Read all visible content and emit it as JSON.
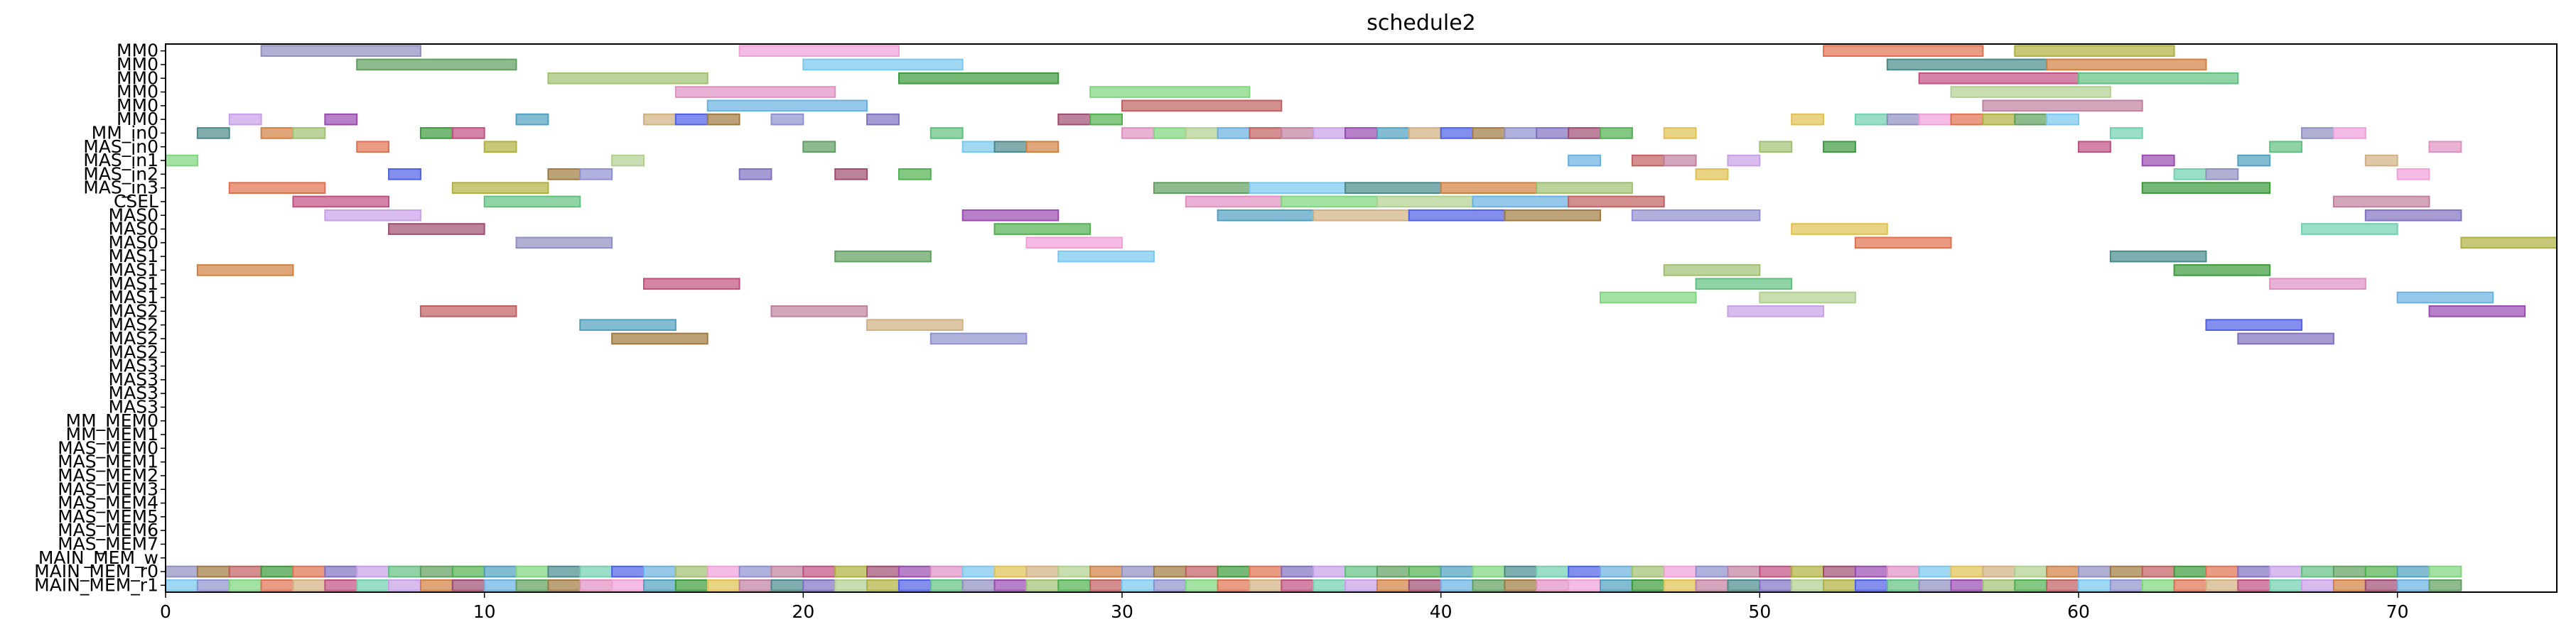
{
  "chart_data": {
    "type": "gantt",
    "title": "schedule2",
    "xlim": [
      0,
      75
    ],
    "xticks": [
      0,
      10,
      20,
      30,
      40,
      50,
      60,
      70
    ],
    "rows": [
      "MM0",
      "MM0",
      "MM0",
      "MM0",
      "MM0",
      "MM0",
      "MM_in0",
      "MAS_in0",
      "MAS_in1",
      "MAS_in2",
      "MAS_in3",
      "CSEL",
      "MAS0",
      "MAS0",
      "MAS0",
      "MAS1",
      "MAS1",
      "MAS1",
      "MAS1",
      "MAS2",
      "MAS2",
      "MAS2",
      "MAS2",
      "MAS3",
      "MAS3",
      "MAS3",
      "MAS3",
      "MM_MEM0",
      "MM_MEM1",
      "MAS_MEM0",
      "MAS_MEM1",
      "MAS_MEM2",
      "MAS_MEM3",
      "MAS_MEM4",
      "MAS_MEM5",
      "MAS_MEM6",
      "MAS_MEM7",
      "MAIN_MEM_w",
      "MAIN_MEM_r0",
      "MAIN_MEM_r1"
    ],
    "palette": [
      "#8f8fc0",
      "#7ed67e",
      "#a04c70",
      "#3c9a3c",
      "#5060e6",
      "#78c8ef",
      "#c8a0e8",
      "#f0a0d8",
      "#b0d090",
      "#50b050",
      "#c05080",
      "#a07a40",
      "#4a8a8a",
      "#9a4ab0",
      "#e07050",
      "#6ab0e0",
      "#e0c050",
      "#60c080",
      "#9090d0",
      "#d08040",
      "#50a0c0",
      "#b0b040",
      "#c06060",
      "#70d0b0",
      "#e090c0",
      "#8070c0",
      "#a0c070",
      "#d0b080",
      "#60a060",
      "#c080a0"
    ],
    "bars": [
      [
        0,
        3,
        8
      ],
      [
        0,
        18,
        23
      ],
      [
        0,
        52,
        57
      ],
      [
        0,
        58,
        63
      ],
      [
        1,
        6,
        11
      ],
      [
        1,
        20,
        25
      ],
      [
        1,
        54,
        59
      ],
      [
        1,
        59,
        64
      ],
      [
        2,
        12,
        17
      ],
      [
        2,
        23,
        28
      ],
      [
        2,
        55,
        60
      ],
      [
        2,
        60,
        65
      ],
      [
        3,
        16,
        21
      ],
      [
        3,
        29,
        34
      ],
      [
        3,
        56,
        61
      ],
      [
        4,
        17,
        22
      ],
      [
        4,
        30,
        35
      ],
      [
        4,
        57,
        62
      ],
      [
        5,
        2,
        3
      ],
      [
        5,
        5,
        6
      ],
      [
        5,
        11,
        12
      ],
      [
        5,
        15,
        16
      ],
      [
        5,
        16,
        17
      ],
      [
        5,
        17,
        18
      ],
      [
        5,
        19,
        20
      ],
      [
        5,
        22,
        23
      ],
      [
        5,
        28,
        29
      ],
      [
        5,
        29,
        30
      ],
      [
        5,
        51,
        52
      ],
      [
        5,
        53,
        54
      ],
      [
        5,
        54,
        55
      ],
      [
        5,
        55,
        56
      ],
      [
        5,
        56,
        57
      ],
      [
        5,
        57,
        58
      ],
      [
        5,
        58,
        59
      ],
      [
        5,
        59,
        60
      ],
      [
        6,
        1,
        2
      ],
      [
        6,
        3,
        4
      ],
      [
        6,
        4,
        5
      ],
      [
        6,
        8,
        9
      ],
      [
        6,
        9,
        10
      ],
      [
        6,
        24,
        25
      ],
      [
        6,
        30,
        31
      ],
      [
        6,
        31,
        32
      ],
      [
        6,
        32,
        33
      ],
      [
        6,
        33,
        34
      ],
      [
        6,
        34,
        35
      ],
      [
        6,
        35,
        36
      ],
      [
        6,
        36,
        37
      ],
      [
        6,
        37,
        38
      ],
      [
        6,
        38,
        39
      ],
      [
        6,
        39,
        40
      ],
      [
        6,
        40,
        41
      ],
      [
        6,
        41,
        42
      ],
      [
        6,
        42,
        43
      ],
      [
        6,
        43,
        44
      ],
      [
        6,
        44,
        45
      ],
      [
        6,
        45,
        46
      ],
      [
        6,
        47,
        48
      ],
      [
        6,
        61,
        62
      ],
      [
        6,
        67,
        68
      ],
      [
        6,
        68,
        69
      ],
      [
        7,
        6,
        7
      ],
      [
        7,
        10,
        11
      ],
      [
        7,
        20,
        21
      ],
      [
        7,
        25,
        26
      ],
      [
        7,
        26,
        27
      ],
      [
        7,
        27,
        28
      ],
      [
        7,
        50,
        51
      ],
      [
        7,
        52,
        53
      ],
      [
        7,
        60,
        61
      ],
      [
        7,
        66,
        67
      ],
      [
        7,
        71,
        72
      ],
      [
        8,
        0,
        1
      ],
      [
        8,
        14,
        15
      ],
      [
        8,
        44,
        45
      ],
      [
        8,
        46,
        47
      ],
      [
        8,
        47,
        48
      ],
      [
        8,
        49,
        50
      ],
      [
        8,
        62,
        63
      ],
      [
        8,
        65,
        66
      ],
      [
        8,
        69,
        70
      ],
      [
        9,
        7,
        8
      ],
      [
        9,
        12,
        13
      ],
      [
        9,
        13,
        14
      ],
      [
        9,
        18,
        19
      ],
      [
        9,
        21,
        22
      ],
      [
        9,
        23,
        24
      ],
      [
        9,
        48,
        49
      ],
      [
        9,
        63,
        64
      ],
      [
        9,
        64,
        65
      ],
      [
        9,
        70,
        71
      ],
      [
        10,
        2,
        5
      ],
      [
        10,
        9,
        12
      ],
      [
        10,
        31,
        34
      ],
      [
        10,
        34,
        37
      ],
      [
        10,
        37,
        40
      ],
      [
        10,
        40,
        43
      ],
      [
        10,
        43,
        46
      ],
      [
        10,
        62,
        66
      ],
      [
        11,
        4,
        7
      ],
      [
        11,
        10,
        13
      ],
      [
        11,
        32,
        35
      ],
      [
        11,
        35,
        38
      ],
      [
        11,
        38,
        41
      ],
      [
        11,
        41,
        44
      ],
      [
        11,
        44,
        47
      ],
      [
        11,
        68,
        71
      ],
      [
        12,
        5,
        8
      ],
      [
        12,
        25,
        28
      ],
      [
        12,
        33,
        36
      ],
      [
        12,
        36,
        39
      ],
      [
        12,
        39,
        42
      ],
      [
        12,
        42,
        45
      ],
      [
        12,
        46,
        50
      ],
      [
        12,
        69,
        72
      ],
      [
        13,
        7,
        10
      ],
      [
        13,
        26,
        29
      ],
      [
        13,
        51,
        54
      ],
      [
        13,
        67,
        70
      ],
      [
        14,
        11,
        14
      ],
      [
        14,
        27,
        30
      ],
      [
        14,
        53,
        56
      ],
      [
        14,
        72,
        75
      ],
      [
        15,
        21,
        24
      ],
      [
        15,
        28,
        31
      ],
      [
        15,
        61,
        64
      ],
      [
        16,
        1,
        4
      ],
      [
        16,
        47,
        50
      ],
      [
        16,
        63,
        66
      ],
      [
        17,
        15,
        18
      ],
      [
        17,
        48,
        51
      ],
      [
        17,
        66,
        69
      ],
      [
        18,
        45,
        48
      ],
      [
        18,
        50,
        53
      ],
      [
        18,
        70,
        73
      ],
      [
        19,
        8,
        11
      ],
      [
        19,
        19,
        22
      ],
      [
        19,
        49,
        52
      ],
      [
        19,
        71,
        74
      ],
      [
        20,
        13,
        16
      ],
      [
        20,
        22,
        25
      ],
      [
        20,
        64,
        67
      ],
      [
        21,
        14,
        17
      ],
      [
        21,
        24,
        27
      ],
      [
        21,
        65,
        68
      ]
    ],
    "memory_rows": {
      "row_w": 38,
      "row_r": 39,
      "w_start": 0,
      "r_start": 0,
      "end": 72
    }
  }
}
